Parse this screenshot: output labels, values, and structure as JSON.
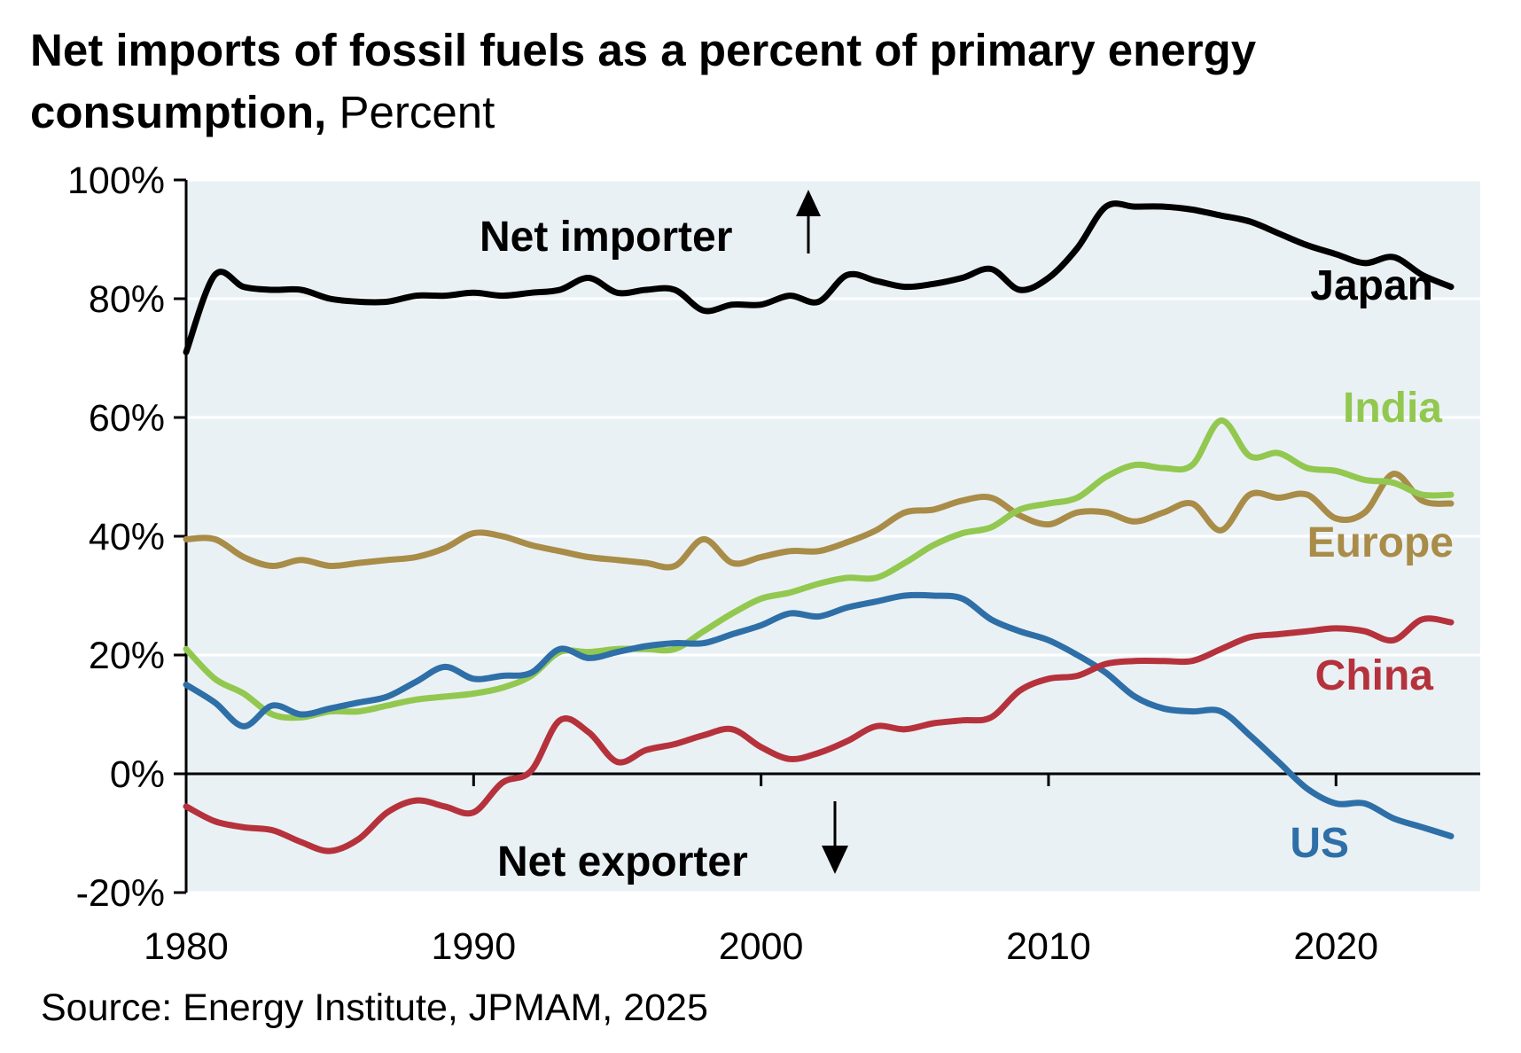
{
  "chart_data": {
    "type": "line",
    "title": "Net imports of fossil fuels as a percent of primary energy consumption,",
    "subtitle": "Percent",
    "xlim": [
      1980,
      2025
    ],
    "ylim": [
      -20,
      100
    ],
    "x_ticks": [
      1980,
      1990,
      2000,
      2010,
      2020
    ],
    "x_tick_labels": [
      "1980",
      "1990",
      "2000",
      "2010",
      "2020"
    ],
    "y_ticks": [
      -20,
      0,
      20,
      40,
      60,
      80,
      100
    ],
    "y_tick_labels": [
      "-20%",
      "0%",
      "20%",
      "40%",
      "60%",
      "80%",
      "100%"
    ],
    "grid": true,
    "annotations": {
      "up": "Net importer",
      "down": "Net exporter"
    },
    "source": "Source: Energy Institute, JPMAM, 2025",
    "series": [
      {
        "name": "Japan",
        "color": "#000000",
        "x": [
          1980,
          1981,
          1982,
          1983,
          1984,
          1985,
          1986,
          1987,
          1988,
          1989,
          1990,
          1991,
          1992,
          1993,
          1994,
          1995,
          1996,
          1997,
          1998,
          1999,
          2000,
          2001,
          2002,
          2003,
          2004,
          2005,
          2006,
          2007,
          2008,
          2009,
          2010,
          2011,
          2012,
          2013,
          2014,
          2015,
          2016,
          2017,
          2018,
          2019,
          2020,
          2021,
          2022,
          2023,
          2024
        ],
        "values": [
          71,
          84,
          82,
          81.5,
          81.5,
          80,
          79.5,
          79.5,
          80.5,
          80.5,
          81,
          80.5,
          81,
          81.5,
          83.5,
          81,
          81.5,
          81.5,
          78,
          79,
          79,
          80.5,
          79.5,
          84,
          83,
          82,
          82.5,
          83.5,
          85,
          81.5,
          83.5,
          88.5,
          95.5,
          95.5,
          95.5,
          95,
          94,
          93,
          91,
          89,
          87.5,
          86,
          87,
          84,
          82
        ]
      },
      {
        "name": "India",
        "color": "#92c850",
        "x": [
          1980,
          1981,
          1982,
          1983,
          1984,
          1985,
          1986,
          1987,
          1988,
          1989,
          1990,
          1991,
          1992,
          1993,
          1994,
          1995,
          1996,
          1997,
          1998,
          1999,
          2000,
          2001,
          2002,
          2003,
          2004,
          2005,
          2006,
          2007,
          2008,
          2009,
          2010,
          2011,
          2012,
          2013,
          2014,
          2015,
          2016,
          2017,
          2018,
          2019,
          2020,
          2021,
          2022,
          2023,
          2024
        ],
        "values": [
          21,
          16,
          13.5,
          10,
          9.5,
          10.5,
          10.5,
          11.5,
          12.5,
          13,
          13.5,
          14.5,
          16.5,
          20.5,
          20.5,
          21,
          21,
          21,
          24,
          27,
          29.5,
          30.5,
          32,
          33,
          33,
          35.5,
          38.5,
          40.5,
          41.5,
          44.5,
          45.5,
          46.5,
          50,
          52,
          51.5,
          52,
          59.5,
          53.5,
          54,
          51.5,
          51,
          49.5,
          49,
          47,
          47
        ]
      },
      {
        "name": "Europe",
        "color": "#a88c48",
        "x": [
          1980,
          1981,
          1982,
          1983,
          1984,
          1985,
          1986,
          1987,
          1988,
          1989,
          1990,
          1991,
          1992,
          1993,
          1994,
          1995,
          1996,
          1997,
          1998,
          1999,
          2000,
          2001,
          2002,
          2003,
          2004,
          2005,
          2006,
          2007,
          2008,
          2009,
          2010,
          2011,
          2012,
          2013,
          2014,
          2015,
          2016,
          2017,
          2018,
          2019,
          2020,
          2021,
          2022,
          2023,
          2024
        ],
        "values": [
          39.5,
          39.5,
          36.5,
          35,
          36,
          35,
          35.5,
          36,
          36.5,
          38,
          40.5,
          40,
          38.5,
          37.5,
          36.5,
          36,
          35.5,
          35,
          39.5,
          35.5,
          36.5,
          37.5,
          37.5,
          39,
          41,
          44,
          44.5,
          46,
          46.5,
          43.5,
          42,
          44,
          44,
          42.5,
          44,
          45.5,
          41,
          47,
          46.5,
          47,
          43,
          44,
          50.5,
          46,
          45.5
        ]
      },
      {
        "name": "US",
        "color": "#2e6fa8",
        "x": [
          1980,
          1981,
          1982,
          1983,
          1984,
          1985,
          1986,
          1987,
          1988,
          1989,
          1990,
          1991,
          1992,
          1993,
          1994,
          1995,
          1996,
          1997,
          1998,
          1999,
          2000,
          2001,
          2002,
          2003,
          2004,
          2005,
          2006,
          2007,
          2008,
          2009,
          2010,
          2011,
          2012,
          2013,
          2014,
          2015,
          2016,
          2017,
          2018,
          2019,
          2020,
          2021,
          2022,
          2023,
          2024
        ],
        "values": [
          15,
          12,
          8,
          11.5,
          10,
          11,
          12,
          13,
          15.5,
          18,
          16,
          16.5,
          17,
          21,
          19.5,
          20.5,
          21.5,
          22,
          22,
          23.5,
          25,
          27,
          26.5,
          28,
          29,
          30,
          30,
          29.5,
          26,
          24,
          22.5,
          20,
          17,
          13,
          11,
          10.5,
          10.5,
          6.5,
          2,
          -2.5,
          -5,
          -5,
          -7.5,
          -9,
          -10.5
        ]
      },
      {
        "name": "China",
        "color": "#b5323c",
        "x": [
          1980,
          1981,
          1982,
          1983,
          1984,
          1985,
          1986,
          1987,
          1988,
          1989,
          1990,
          1991,
          1992,
          1993,
          1994,
          1995,
          1996,
          1997,
          1998,
          1999,
          2000,
          2001,
          2002,
          2003,
          2004,
          2005,
          2006,
          2007,
          2008,
          2009,
          2010,
          2011,
          2012,
          2013,
          2014,
          2015,
          2016,
          2017,
          2018,
          2019,
          2020,
          2021,
          2022,
          2023,
          2024
        ],
        "values": [
          -5.5,
          -8,
          -9,
          -9.5,
          -11.5,
          -13,
          -11,
          -6.5,
          -4.5,
          -5.5,
          -6.5,
          -1.5,
          0.5,
          9,
          7,
          2,
          4,
          5,
          6.5,
          7.5,
          4.5,
          2.5,
          3.5,
          5.5,
          8,
          7.5,
          8.5,
          9,
          9.5,
          14,
          16,
          16.5,
          18.5,
          19,
          19,
          19,
          21,
          23,
          23.5,
          24,
          24.5,
          24,
          22.5,
          26,
          25.5
        ]
      }
    ],
    "series_labels": [
      "Japan",
      "India",
      "Europe",
      "China",
      "US"
    ]
  }
}
